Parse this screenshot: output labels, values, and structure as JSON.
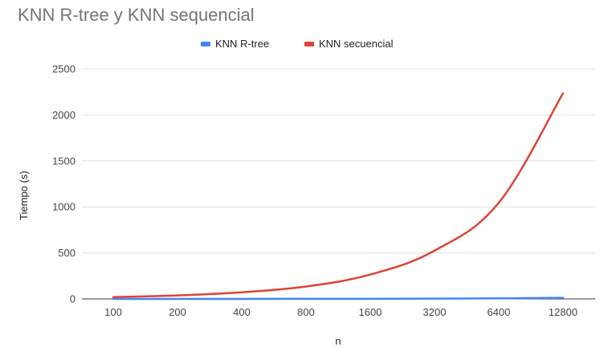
{
  "chart_data": {
    "type": "line",
    "title": "KNN R-tree y KNN sequencial",
    "xlabel": "n",
    "ylabel": "Tiempo (s)",
    "categories": [
      "100",
      "200",
      "400",
      "800",
      "1600",
      "3200",
      "6400",
      "12800"
    ],
    "ylim": [
      0,
      2500
    ],
    "yticks": [
      0,
      500,
      1000,
      1500,
      2000,
      2500
    ],
    "grid": true,
    "legend_position": "top",
    "series": [
      {
        "name": "KNN R-tree",
        "color": "#4285f4",
        "values": [
          0.1,
          0.2,
          0.4,
          0.8,
          1.5,
          3,
          6,
          12
        ]
      },
      {
        "name": "KNN secuencial",
        "color": "#db4437",
        "values": [
          20,
          38,
          72,
          135,
          265,
          525,
          1045,
          2235
        ]
      }
    ]
  }
}
